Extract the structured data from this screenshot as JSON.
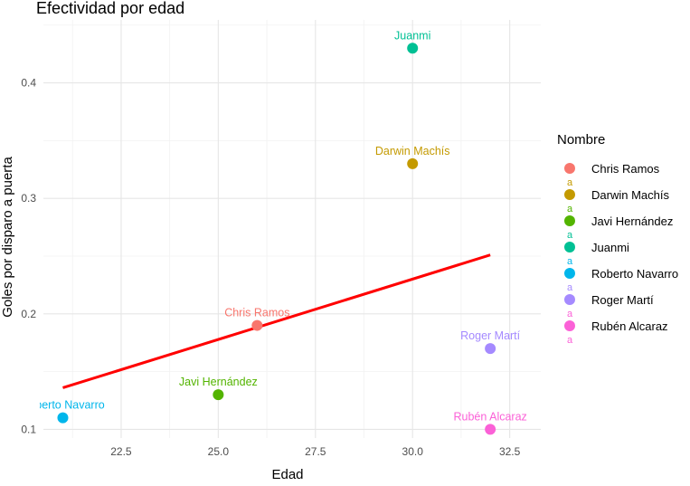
{
  "chart_data": {
    "type": "scatter",
    "title": "Efectividad por edad",
    "xlabel": "Edad",
    "ylabel": "Goles por disparo a puerta",
    "xlim": [
      20.5,
      33.3
    ],
    "ylim": [
      0.0925,
      0.4545
    ],
    "x_ticks": [
      22.5,
      25.0,
      27.5,
      30.0,
      32.5
    ],
    "x_tick_labels": [
      "22.5",
      "25.0",
      "27.5",
      "30.0",
      "32.5"
    ],
    "y_ticks": [
      0.1,
      0.2,
      0.3,
      0.4
    ],
    "y_tick_labels": [
      "0.1",
      "0.2",
      "0.3",
      "0.4"
    ],
    "grid": true,
    "legend": {
      "title": "Nombre",
      "placement": "right",
      "glyph_text": "a",
      "entries": [
        {
          "name": "Chris Ramos",
          "color": "#F8766D"
        },
        {
          "name": "Darwin Machís",
          "color": "#C49A00"
        },
        {
          "name": "Javi Hernández",
          "color": "#53B400"
        },
        {
          "name": "Juanmi",
          "color": "#00C094"
        },
        {
          "name": "Roberto Navarro",
          "color": "#00B6EB"
        },
        {
          "name": "Roger Martí",
          "color": "#A58AFF"
        },
        {
          "name": "Rubén Alcaraz",
          "color": "#FB61D7"
        }
      ]
    },
    "points": [
      {
        "name": "Chris Ramos",
        "x": 26.0,
        "y": 0.19,
        "color": "#F8766D"
      },
      {
        "name": "Darwin Machís",
        "x": 30.0,
        "y": 0.33,
        "color": "#C49A00"
      },
      {
        "name": "Javi Hernández",
        "x": 25.0,
        "y": 0.13,
        "color": "#53B400"
      },
      {
        "name": "Juanmi",
        "x": 30.0,
        "y": 0.43,
        "color": "#00C094"
      },
      {
        "name": "Roberto Navarro",
        "x": 21.0,
        "y": 0.11,
        "color": "#00B6EB"
      },
      {
        "name": "Roger Martí",
        "x": 32.0,
        "y": 0.17,
        "color": "#A58AFF"
      },
      {
        "name": "Rubén Alcaraz",
        "x": 32.0,
        "y": 0.1,
        "color": "#FB61D7"
      }
    ],
    "trend_line": {
      "type": "linear",
      "color": "#FF0000",
      "x": [
        21.0,
        32.0
      ],
      "y": [
        0.136,
        0.251
      ]
    }
  }
}
